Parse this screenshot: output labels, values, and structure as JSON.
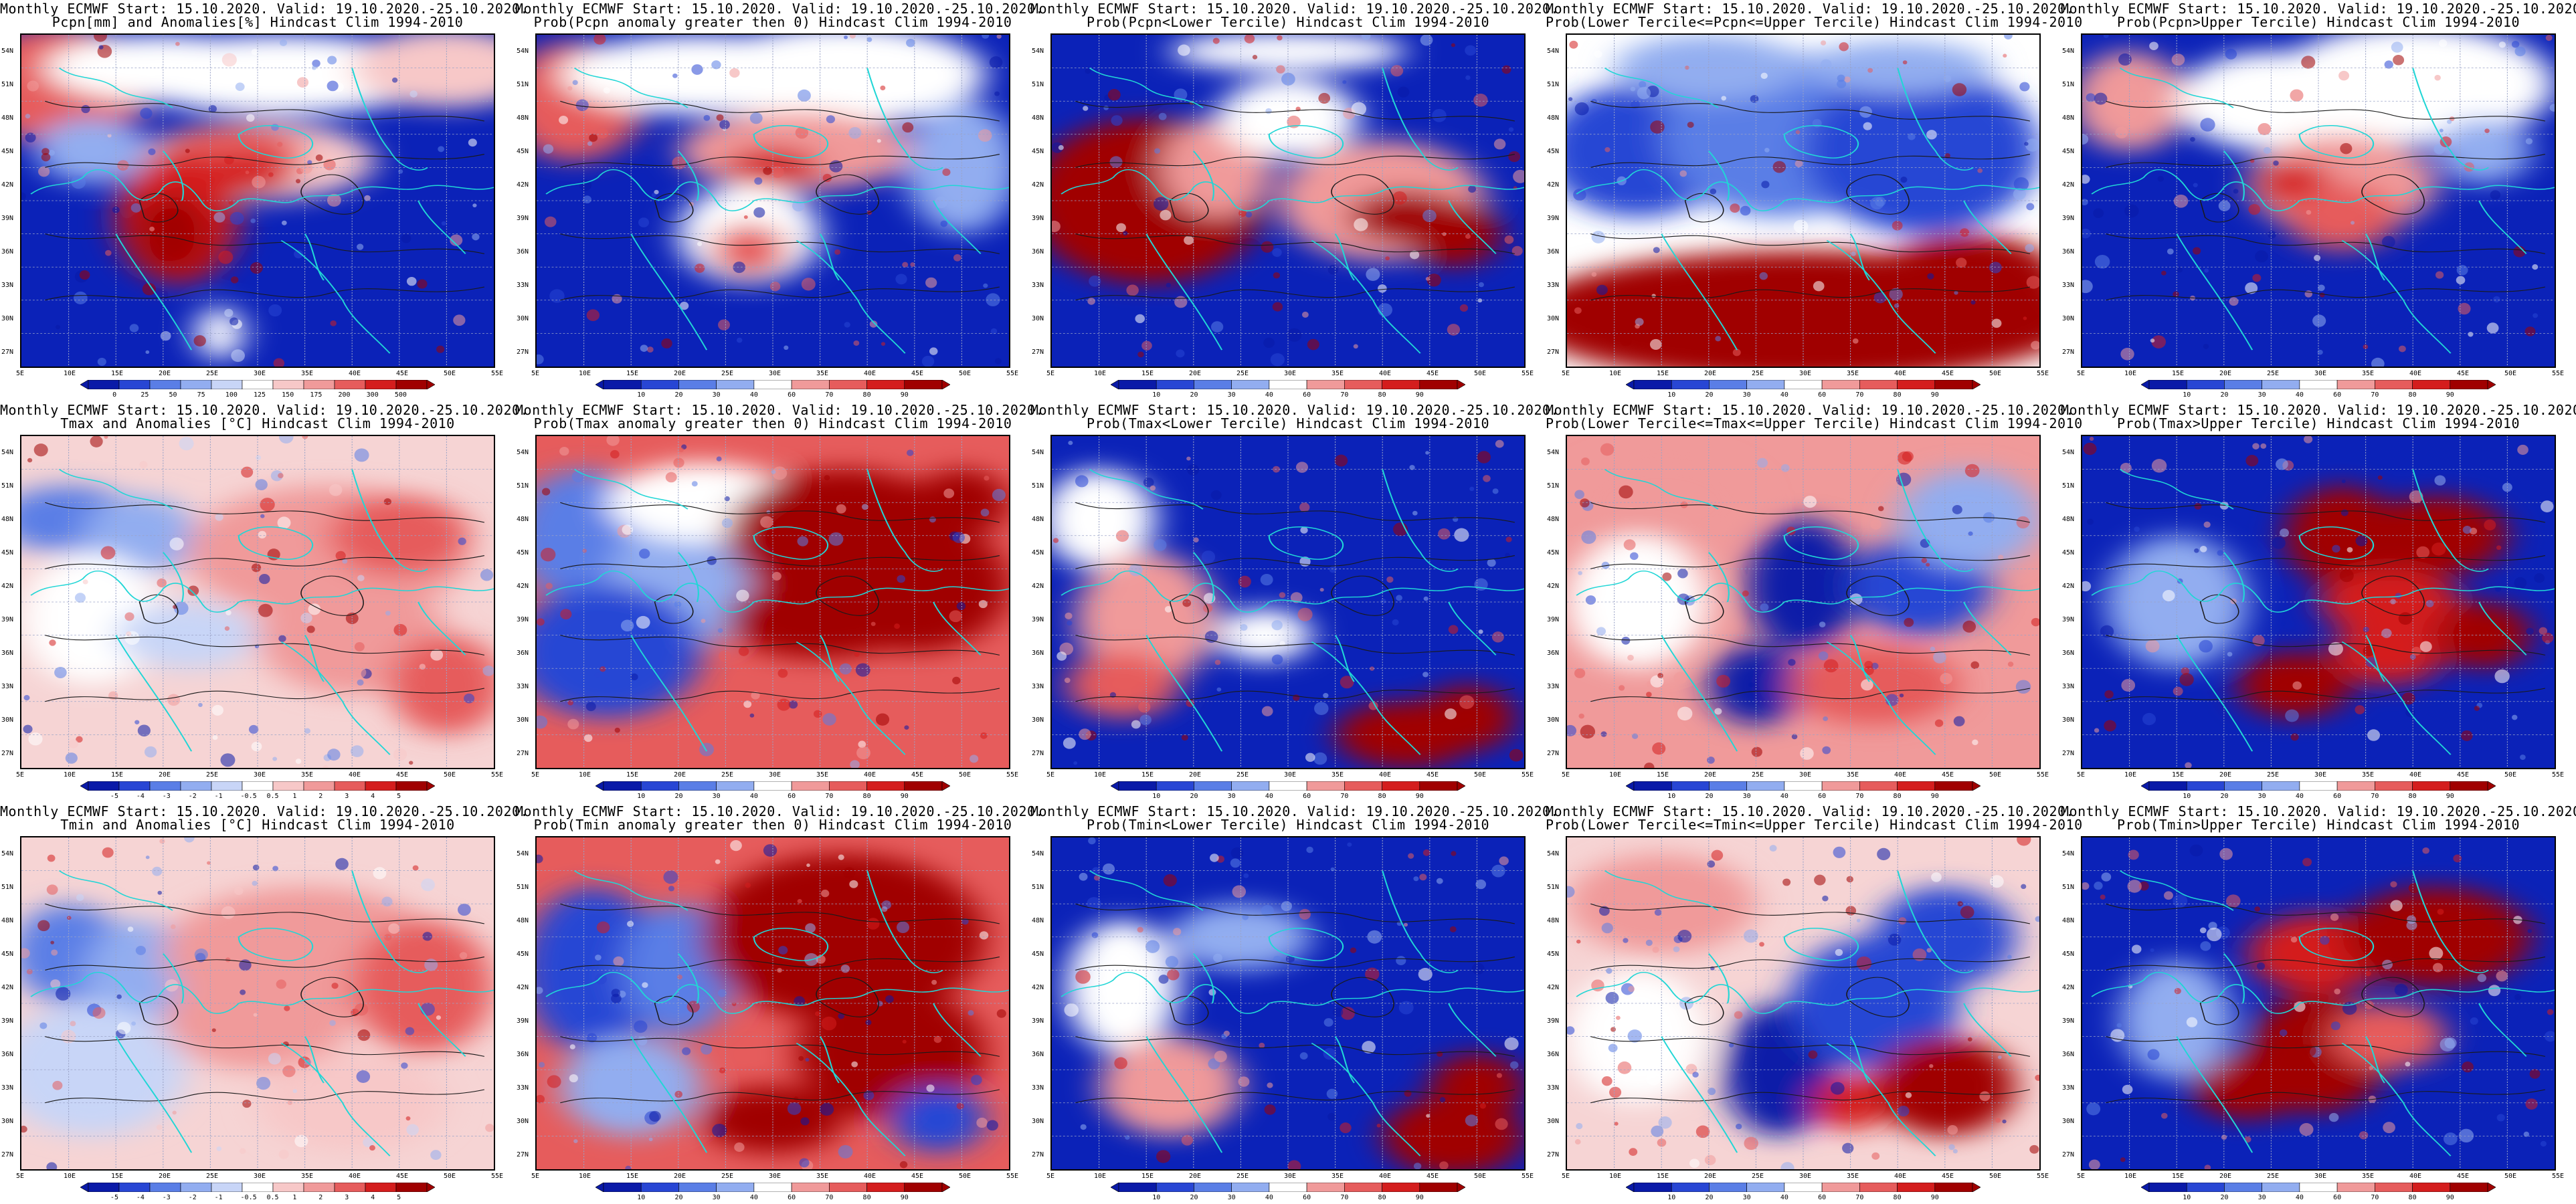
{
  "grid": {
    "lat_ticks": [
      "54N",
      "51N",
      "48N",
      "45N",
      "42N",
      "39N",
      "36N",
      "33N",
      "30N",
      "27N"
    ],
    "lon_ticks": [
      "5E",
      "10E",
      "15E",
      "20E",
      "25E",
      "30E",
      "35E",
      "40E",
      "45E",
      "50E",
      "55E"
    ]
  },
  "colorscales": {
    "precip_anom": [
      "0",
      "25",
      "50",
      "75",
      "100",
      "125",
      "150",
      "175",
      "200",
      "300",
      "500"
    ],
    "temp_anom": [
      "-5",
      "-4",
      "-3",
      "-2",
      "-1",
      "-0.5",
      "0.5",
      "1",
      "2",
      "3",
      "4",
      "5"
    ],
    "probability": [
      "10",
      "20",
      "30",
      "40",
      "60",
      "70",
      "80",
      "90"
    ]
  },
  "rows": [
    {
      "panels": [
        {
          "title1": "Monthly ECMWF Start: 15.10.2020. Valid: 19.10.2020.-25.10.2020.",
          "title2": "Pcpn[mm] and Anomalies[%] Hindcast Clim 1994-2010",
          "scale": "precip_anom",
          "pattern": "p1"
        },
        {
          "title1": "Monthly ECMWF Start: 15.10.2020. Valid: 19.10.2020.-25.10.2020.",
          "title2": "Prob(Pcpn anomaly greater then 0) Hindcast Clim 1994-2010",
          "scale": "probability",
          "pattern": "p2"
        },
        {
          "title1": "Monthly ECMWF Start: 15.10.2020. Valid: 19.10.2020.-25.10.2020.",
          "title2": "Prob(Pcpn<Lower Tercile) Hindcast Clim 1994-2010",
          "scale": "probability",
          "pattern": "p3"
        },
        {
          "title1": "Monthly ECMWF Start: 15.10.2020. Valid: 19.10.2020.-25.10.2020.",
          "title2": "Prob(Lower Tercile<=Pcpn<=Upper Tercile) Hindcast Clim 1994-2010",
          "scale": "probability",
          "pattern": "p4"
        },
        {
          "title1": "Monthly ECMWF Start: 15.10.2020. Valid: 19.10.2020.-25.10.2020.",
          "title2": "Prob(Pcpn>Upper Tercile) Hindcast Clim 1994-2010",
          "scale": "probability",
          "pattern": "p5"
        }
      ]
    },
    {
      "panels": [
        {
          "title1": "Monthly ECMWF Start: 15.10.2020. Valid: 19.10.2020.-25.10.2020.",
          "title2": "Tmax and Anomalies [°C] Hindcast Clim 1994-2010",
          "scale": "temp_anom",
          "pattern": "t1"
        },
        {
          "title1": "Monthly ECMWF Start: 15.10.2020. Valid: 19.10.2020.-25.10.2020.",
          "title2": "Prob(Tmax anomaly greater then 0) Hindcast Clim 1994-2010",
          "scale": "probability",
          "pattern": "t2"
        },
        {
          "title1": "Monthly ECMWF Start: 15.10.2020. Valid: 19.10.2020.-25.10.2020.",
          "title2": "Prob(Tmax<Lower Tercile) Hindcast Clim 1994-2010",
          "scale": "probability",
          "pattern": "t3"
        },
        {
          "title1": "Monthly ECMWF Start: 15.10.2020. Valid: 19.10.2020.-25.10.2020.",
          "title2": "Prob(Lower Tercile<=Tmax<=Upper Tercile) Hindcast Clim 1994-2010",
          "scale": "probability",
          "pattern": "t4"
        },
        {
          "title1": "Monthly ECMWF Start: 15.10.2020. Valid: 19.10.2020.-25.10.2020.",
          "title2": "Prob(Tmax>Upper Tercile) Hindcast Clim 1994-2010",
          "scale": "probability",
          "pattern": "t5"
        }
      ]
    },
    {
      "panels": [
        {
          "title1": "Monthly ECMWF Start: 15.10.2020. Valid: 19.10.2020.-25.10.2020.",
          "title2": "Tmin and Anomalies [°C] Hindcast Clim 1994-2010",
          "scale": "temp_anom",
          "pattern": "n1"
        },
        {
          "title1": "Monthly ECMWF Start: 15.10.2020. Valid: 19.10.2020.-25.10.2020.",
          "title2": "Prob(Tmin anomaly greater then 0) Hindcast Clim 1994-2010",
          "scale": "probability",
          "pattern": "n2"
        },
        {
          "title1": "Monthly ECMWF Start: 15.10.2020. Valid: 19.10.2020.-25.10.2020.",
          "title2": "Prob(Tmin<Lower Tercile) Hindcast Clim 1994-2010",
          "scale": "probability",
          "pattern": "n3"
        },
        {
          "title1": "Monthly ECMWF Start: 15.10.2020. Valid: 19.10.2020.-25.10.2020.",
          "title2": "Prob(Lower Tercile<=Tmin<=Upper Tercile) Hindcast Clim 1994-2010",
          "scale": "probability",
          "pattern": "n4"
        },
        {
          "title1": "Monthly ECMWF Start: 15.10.2020. Valid: 19.10.2020.-25.10.2020.",
          "title2": "Prob(Tmin>Upper Tercile) Hindcast Clim 1994-2010",
          "scale": "probability",
          "pattern": "n5"
        }
      ]
    }
  ]
}
